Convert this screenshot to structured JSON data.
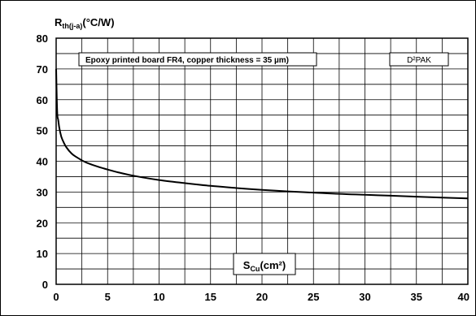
{
  "chart_data": {
    "type": "line",
    "title": "",
    "ylabel": {
      "main": "R",
      "sub": "th(j-a)",
      "unit": "(°C/W)"
    },
    "xlabel": {
      "main": "S",
      "sub": "Cu",
      "unit": "(cm²)"
    },
    "xlim": [
      0,
      40
    ],
    "ylim": [
      0,
      80
    ],
    "xticks": [
      0,
      5,
      10,
      15,
      20,
      25,
      30,
      35,
      40
    ],
    "yticks": [
      0,
      10,
      20,
      30,
      40,
      50,
      60,
      70,
      80
    ],
    "x_minor_step": 2.5,
    "y_minor_step": 5,
    "grid": true,
    "annotations": {
      "board": "Epoxy printed board FR4, copper thickness = 35 µm)",
      "package": "D²PAK"
    },
    "series": [
      {
        "x": [
          0.0,
          0.1,
          0.2,
          0.3,
          0.5,
          0.75,
          1.0,
          1.5,
          2.0,
          2.5,
          3.0,
          4.0,
          5.0,
          6.0,
          7.5,
          10.0,
          12.5,
          15.0,
          17.5,
          20.0,
          22.5,
          25.0,
          27.5,
          30.0,
          32.5,
          35.0,
          37.5,
          40.0
        ],
        "y": [
          70.0,
          56.0,
          53.5,
          51.0,
          48.0,
          46.0,
          44.5,
          42.5,
          41.3,
          40.3,
          39.5,
          38.3,
          37.3,
          36.4,
          35.3,
          33.9,
          32.9,
          32.0,
          31.3,
          30.7,
          30.2,
          29.8,
          29.4,
          29.1,
          28.8,
          28.5,
          28.2,
          27.9
        ]
      }
    ]
  }
}
